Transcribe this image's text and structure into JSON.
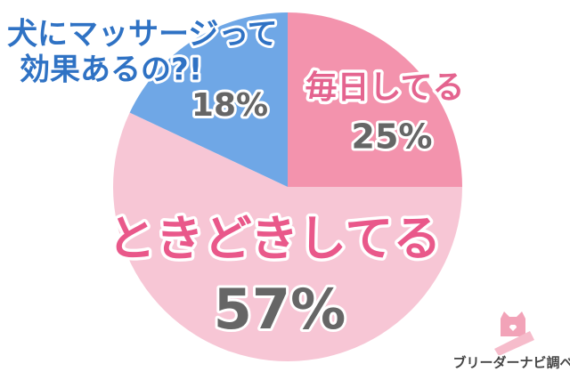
{
  "chart_data": {
    "type": "pie",
    "title": [
      "犬にマッサージって",
      "効果あるの?!"
    ],
    "categories": [
      "毎日してる",
      "ときどきしてる",
      null
    ],
    "values": [
      25,
      57,
      18
    ],
    "value_labels": [
      "25%",
      "57%",
      "18%"
    ],
    "colors": [
      "#f393ad",
      "#f7c6d5",
      "#6fa7e6"
    ],
    "source": "ブリーダーナビ調べ"
  }
}
